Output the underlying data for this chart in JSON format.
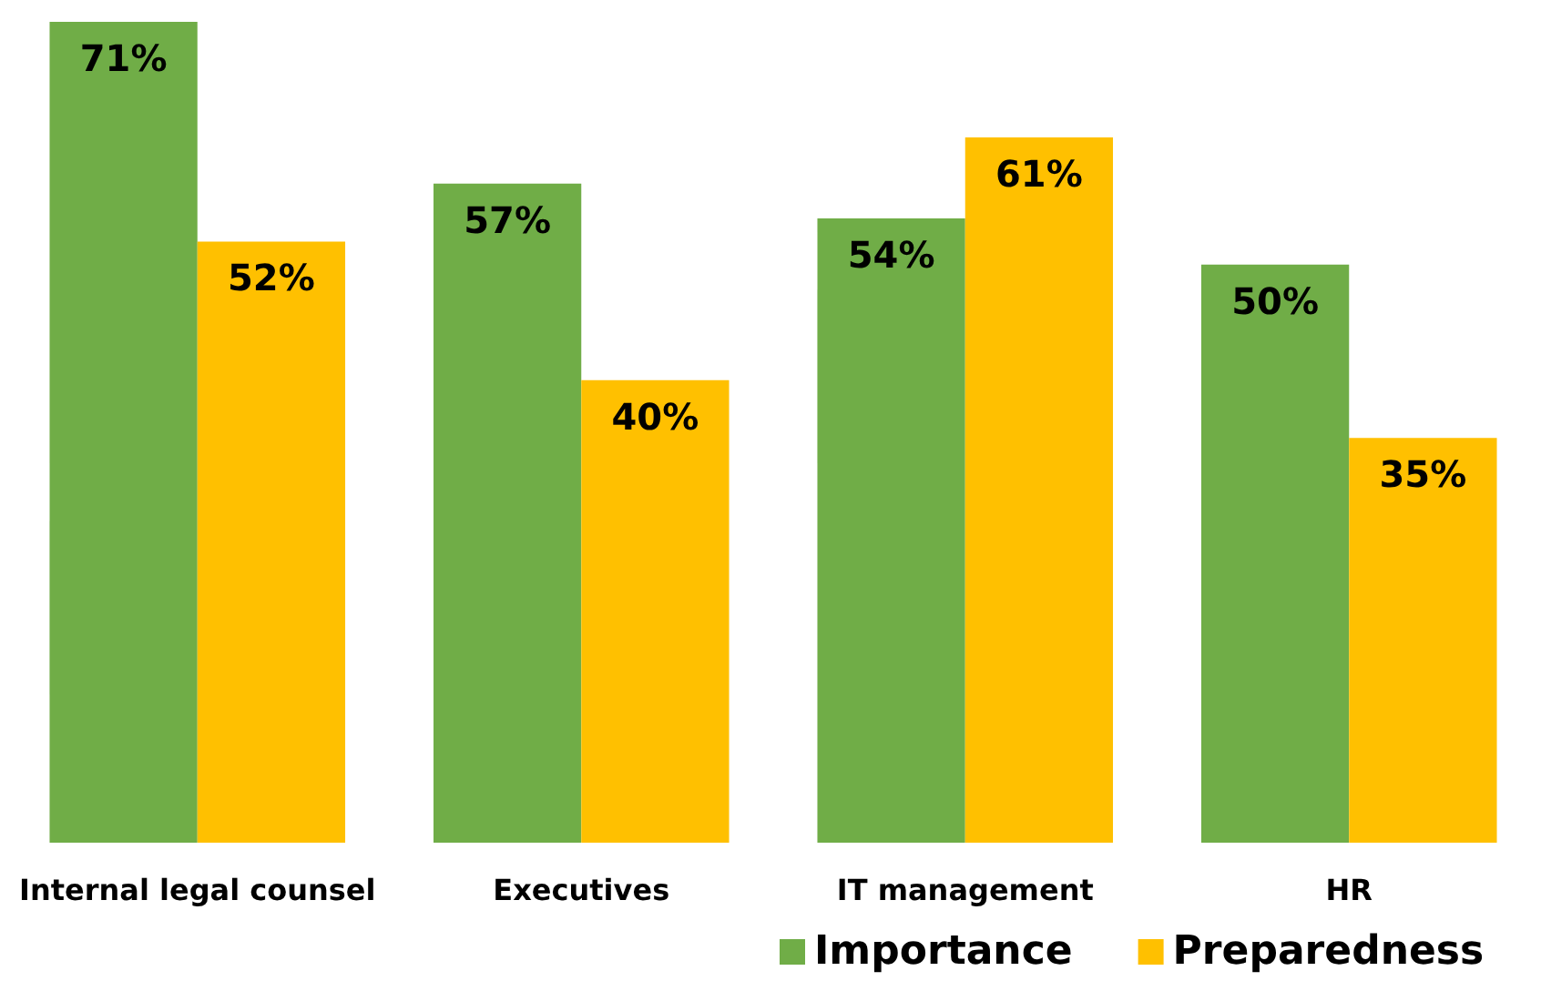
{
  "chart_data": {
    "type": "bar",
    "categories": [
      "Internal legal counsel",
      "Executives",
      "IT management",
      "HR"
    ],
    "series": [
      {
        "name": "Importance",
        "color": "#70ad47",
        "values": [
          71,
          57,
          54,
          50
        ],
        "value_labels": [
          "71%",
          "57%",
          "54%",
          "50%"
        ]
      },
      {
        "name": "Preparedness",
        "color": "#ffc000",
        "values": [
          52,
          40,
          61,
          35
        ],
        "value_labels": [
          "52%",
          "40%",
          "61%",
          "35%"
        ]
      }
    ],
    "legend": "bottom",
    "grid": false
  }
}
